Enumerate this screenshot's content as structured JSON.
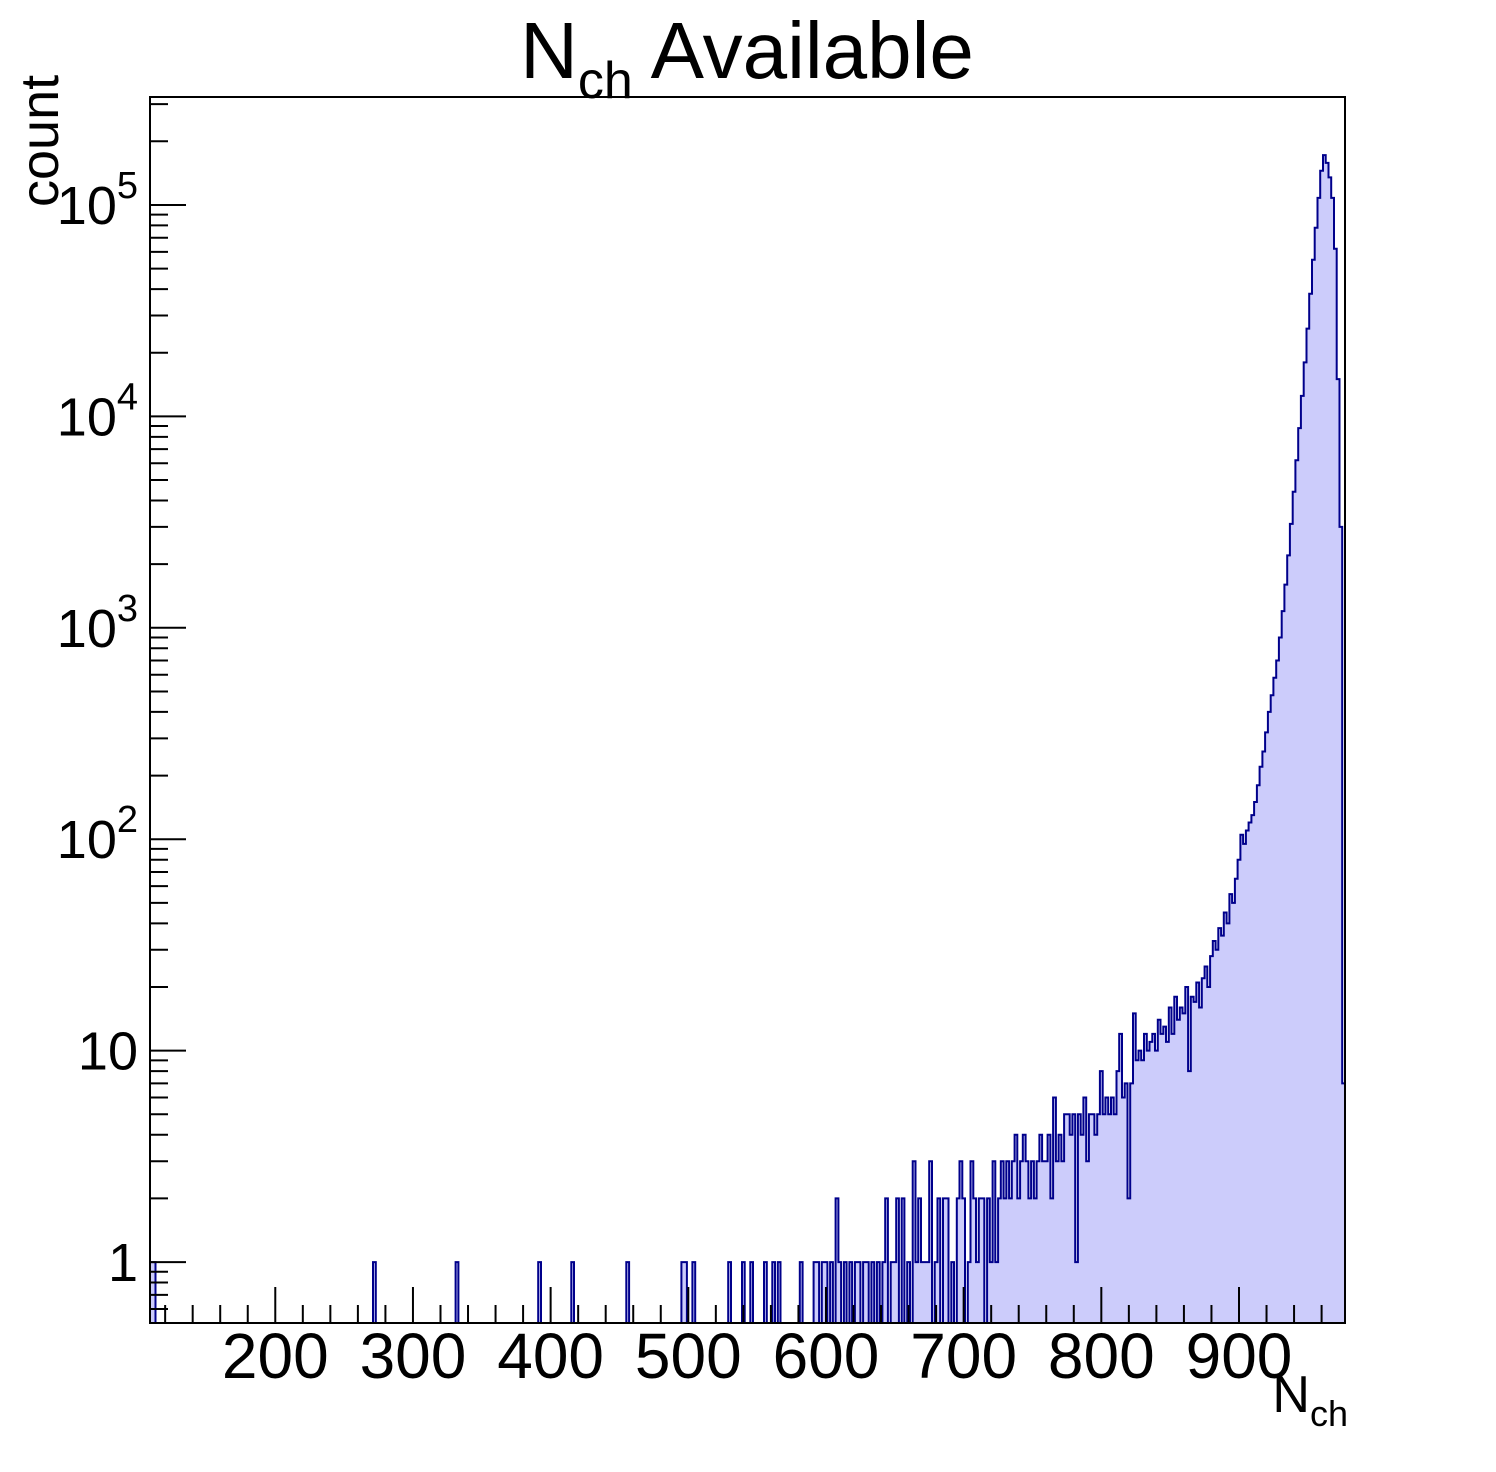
{
  "title": {
    "main": "N",
    "subscript": "ch",
    "rest": " Available"
  },
  "axes": {
    "x": {
      "title_main": "N",
      "title_subscript": "ch",
      "min": 109,
      "max": 977,
      "major_ticks": [
        200,
        300,
        400,
        500,
        600,
        700,
        800,
        900
      ],
      "major_tick_labels": [
        "200",
        "300",
        "400",
        "500",
        "600",
        "700",
        "800",
        "900"
      ],
      "minor_tick_step": 20
    },
    "y": {
      "label": "count",
      "scale": "log",
      "min": 0.515,
      "max": 324000,
      "tick_labels": [
        {
          "v": 1,
          "base": "1",
          "exp": ""
        },
        {
          "v": 10,
          "base": "10",
          "exp": ""
        },
        {
          "v": 100,
          "base": "10",
          "exp": "2"
        },
        {
          "v": 1000,
          "base": "10",
          "exp": "3"
        },
        {
          "v": 10000,
          "base": "10",
          "exp": "4"
        },
        {
          "v": 100000,
          "base": "10",
          "exp": "5"
        }
      ]
    }
  },
  "colors": {
    "fill": "#ccccfb",
    "line": "#00008b",
    "axis": "#000000",
    "background": "#ffffff"
  },
  "chart_data": {
    "type": "bar",
    "subtype": "histogram",
    "title": "N_ch Available",
    "xlabel": "N_ch",
    "ylabel": "count",
    "yscale": "log",
    "xlim": [
      109,
      977
    ],
    "ylim": [
      0.515,
      324000
    ],
    "x_start": 109,
    "bin_width": 2,
    "counts": [
      1,
      1,
      0,
      0,
      0,
      0,
      0,
      0,
      0,
      0,
      0,
      0,
      0,
      0,
      0,
      0,
      0,
      0,
      0,
      0,
      0,
      0,
      0,
      0,
      0,
      0,
      0,
      0,
      0,
      0,
      0,
      0,
      0,
      0,
      0,
      0,
      0,
      0,
      0,
      0,
      0,
      0,
      0,
      0,
      0,
      0,
      0,
      0,
      0,
      0,
      0,
      0,
      0,
      0,
      0,
      0,
      0,
      0,
      0,
      0,
      0,
      0,
      0,
      0,
      0,
      0,
      0,
      0,
      0,
      0,
      0,
      0,
      0,
      0,
      0,
      0,
      0,
      0,
      0,
      0,
      0,
      1,
      0,
      0,
      0,
      0,
      0,
      0,
      0,
      0,
      0,
      0,
      0,
      0,
      0,
      0,
      0,
      0,
      0,
      0,
      0,
      0,
      0,
      0,
      0,
      0,
      0,
      0,
      0,
      0,
      0,
      1,
      0,
      0,
      0,
      0,
      0,
      0,
      0,
      0,
      0,
      0,
      0,
      0,
      0,
      0,
      0,
      0,
      0,
      0,
      0,
      0,
      0,
      0,
      0,
      0,
      0,
      0,
      0,
      0,
      0,
      1,
      0,
      0,
      0,
      0,
      0,
      0,
      0,
      0,
      0,
      0,
      0,
      1,
      0,
      0,
      0,
      0,
      0,
      0,
      0,
      0,
      0,
      0,
      0,
      0,
      0,
      0,
      0,
      0,
      0,
      0,
      0,
      1,
      0,
      0,
      0,
      0,
      0,
      0,
      0,
      0,
      0,
      0,
      0,
      0,
      0,
      0,
      0,
      0,
      0,
      0,
      0,
      1,
      1,
      0,
      0,
      1,
      0,
      0,
      0,
      0,
      0,
      0,
      0,
      0,
      0,
      0,
      0,
      0,
      1,
      0,
      0,
      0,
      0,
      1,
      0,
      0,
      1,
      0,
      0,
      0,
      0,
      1,
      0,
      0,
      1,
      0,
      1,
      0,
      0,
      0,
      0,
      0,
      0,
      0,
      1,
      0,
      0,
      0,
      0,
      1,
      1,
      0,
      1,
      1,
      0,
      1,
      0,
      2,
      1,
      0,
      1,
      0,
      1,
      0,
      1,
      1,
      0,
      1,
      1,
      0,
      1,
      0,
      1,
      0,
      1,
      2,
      0,
      1,
      1,
      2,
      0,
      2,
      0,
      1,
      0,
      3,
      1,
      2,
      1,
      1,
      1,
      3,
      0,
      1,
      2,
      0,
      2,
      2,
      0,
      1,
      0,
      2,
      3,
      2,
      0,
      1,
      3,
      2,
      1,
      2,
      2,
      0,
      2,
      1,
      3,
      1,
      2,
      3,
      2,
      3,
      2,
      3,
      4,
      2,
      3,
      4,
      3,
      2,
      3,
      2,
      3,
      4,
      3,
      3,
      4,
      2,
      6,
      3,
      4,
      3,
      5,
      5,
      4,
      5,
      1,
      5,
      4,
      6,
      3,
      5,
      5,
      4,
      5,
      8,
      5,
      6,
      5,
      6,
      5,
      8,
      12,
      6,
      7,
      2,
      7,
      15,
      9,
      10,
      9,
      12,
      10,
      11,
      12,
      10,
      14,
      12,
      13,
      11,
      16,
      12,
      18,
      14,
      16,
      15,
      20,
      8,
      18,
      17,
      21,
      16,
      22,
      25,
      20,
      28,
      33,
      30,
      38,
      35,
      45,
      40,
      55,
      50,
      65,
      80,
      105,
      95,
      110,
      120,
      130,
      150,
      180,
      220,
      260,
      320,
      400,
      480,
      580,
      700,
      900,
      1200,
      1600,
      2200,
      3100,
      4400,
      6200,
      8800,
      12500,
      18000,
      26000,
      38000,
      55000,
      78000,
      108000,
      145000,
      172000,
      158000,
      135000,
      108000,
      62000,
      15000,
      3000,
      7
    ]
  }
}
